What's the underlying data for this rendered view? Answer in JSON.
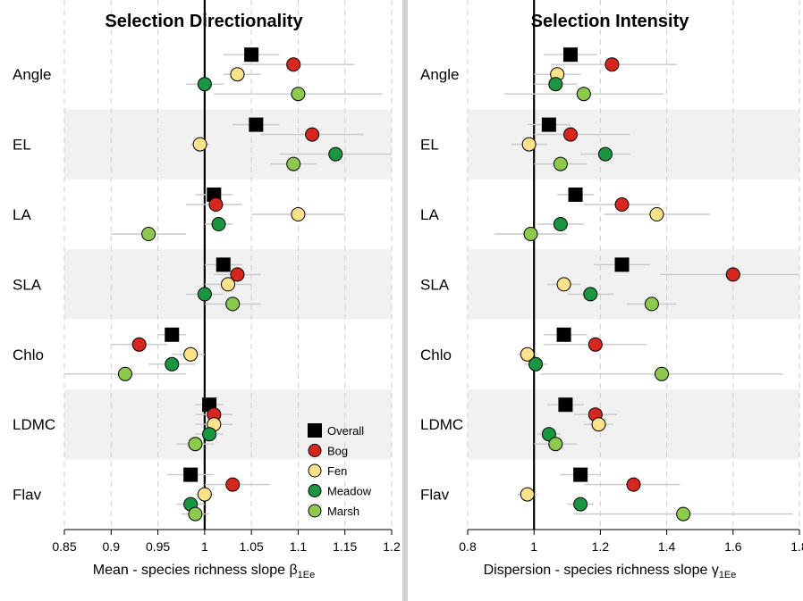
{
  "colors": {
    "Overall": "#000000",
    "Bog": "#d7261e",
    "Fen": "#fde28c",
    "Meadow": "#1a9641",
    "Marsh": "#8cc94c",
    "ci_line": "#c8c8c8",
    "band": "#f1f1f1",
    "grid": "#cfcfcf"
  },
  "chart_data": [
    {
      "type": "scatter",
      "title": "Selection Directionality",
      "xlabel": "Mean - species richness slope",
      "xlabel_symbol": "β",
      "xlabel_sub": "1Ee",
      "xlim": [
        0.85,
        1.2
      ],
      "xticks": [
        0.85,
        0.9,
        0.95,
        1,
        1.05,
        1.1,
        1.15,
        1.2
      ],
      "reference_line": 1,
      "grid": true,
      "legend": "bottom-right",
      "categories": [
        "Angle",
        "EL",
        "LA",
        "SLA",
        "Chlo",
        "LDMC",
        "Flav"
      ],
      "series": [
        {
          "name": "Overall",
          "marker": "square",
          "values": [
            1.05,
            1.055,
            1.01,
            1.02,
            0.965,
            1.005,
            0.985
          ],
          "ci": [
            [
              1.02,
              1.08
            ],
            [
              1.03,
              1.08
            ],
            [
              0.99,
              1.03
            ],
            [
              1.0,
              1.04
            ],
            [
              0.95,
              0.98
            ],
            [
              0.99,
              1.02
            ],
            [
              0.96,
              1.01
            ]
          ]
        },
        {
          "name": "Bog",
          "marker": "circle",
          "values": [
            1.095,
            1.115,
            1.012,
            1.035,
            0.93,
            1.01,
            1.03
          ],
          "ci": [
            [
              1.04,
              1.16
            ],
            [
              1.06,
              1.17
            ],
            [
              0.98,
              1.04
            ],
            [
              1.01,
              1.06
            ],
            [
              0.9,
              0.96
            ],
            [
              0.99,
              1.03
            ],
            [
              1.0,
              1.07
            ]
          ]
        },
        {
          "name": "Fen",
          "marker": "circle",
          "values": [
            1.035,
            0.995,
            1.1,
            1.025,
            0.985,
            1.01,
            1.0
          ],
          "ci": [
            [
              1.02,
              1.06
            ],
            [
              0.985,
              1.005
            ],
            [
              1.05,
              1.15
            ],
            [
              1.0,
              1.05
            ],
            [
              0.965,
              1.0
            ],
            [
              0.99,
              1.03
            ],
            [
              0.99,
              1.01
            ]
          ]
        },
        {
          "name": "Meadow",
          "marker": "circle",
          "values": [
            1.0,
            1.14,
            1.015,
            1.0,
            0.965,
            1.005,
            0.985
          ],
          "ci": [
            [
              0.98,
              1.02
            ],
            [
              1.08,
              1.2
            ],
            [
              1.0,
              1.03
            ],
            [
              0.98,
              1.02
            ],
            [
              0.94,
              0.99
            ],
            [
              0.99,
              1.02
            ],
            [
              0.97,
              1.0
            ]
          ]
        },
        {
          "name": "Marsh",
          "marker": "circle",
          "values": [
            1.1,
            1.095,
            0.94,
            1.03,
            0.915,
            0.99,
            0.99
          ],
          "ci": [
            [
              1.01,
              1.19
            ],
            [
              1.07,
              1.12
            ],
            [
              0.9,
              0.98
            ],
            [
              1.0,
              1.06
            ],
            [
              0.85,
              0.98
            ],
            [
              0.97,
              1.01
            ],
            [
              0.975,
              1.005
            ]
          ]
        }
      ]
    },
    {
      "type": "scatter",
      "title": "Selection Intensity",
      "xlabel": "Dispersion - species richness slope",
      "xlabel_symbol": "γ",
      "xlabel_sub": "1Ee",
      "xlim": [
        0.8,
        1.8
      ],
      "xticks": [
        0.8,
        1,
        1.2,
        1.4,
        1.6,
        1.8
      ],
      "reference_line": 1,
      "grid": true,
      "categories": [
        "Angle",
        "EL",
        "LA",
        "SLA",
        "Chlo",
        "LDMC",
        "Flav"
      ],
      "series": [
        {
          "name": "Overall",
          "marker": "square",
          "values": [
            1.11,
            1.045,
            1.125,
            1.265,
            1.09,
            1.095,
            1.14
          ],
          "ci": [
            [
              1.03,
              1.19
            ],
            [
              0.98,
              1.11
            ],
            [
              1.07,
              1.18
            ],
            [
              1.18,
              1.35
            ],
            [
              1.03,
              1.16
            ],
            [
              1.04,
              1.15
            ],
            [
              1.08,
              1.2
            ]
          ]
        },
        {
          "name": "Bog",
          "marker": "circle",
          "values": [
            1.235,
            1.11,
            1.265,
            1.6,
            1.185,
            1.185,
            1.3
          ],
          "ci": [
            [
              1.05,
              1.43
            ],
            [
              1.0,
              1.29
            ],
            [
              1.15,
              1.38
            ],
            [
              1.38,
              1.82
            ],
            [
              1.03,
              1.34
            ],
            [
              1.12,
              1.25
            ],
            [
              1.15,
              1.44
            ]
          ]
        },
        {
          "name": "Fen",
          "marker": "circle",
          "values": [
            1.07,
            0.985,
            1.37,
            1.09,
            0.98,
            1.195,
            0.98
          ],
          "ci": [
            [
              1.0,
              1.14
            ],
            [
              0.93,
              1.04
            ],
            [
              1.21,
              1.53
            ],
            [
              1.04,
              1.14
            ],
            [
              0.95,
              1.01
            ],
            [
              1.15,
              1.24
            ],
            [
              0.95,
              1.01
            ]
          ]
        },
        {
          "name": "Meadow",
          "marker": "circle",
          "values": [
            1.065,
            1.215,
            1.08,
            1.17,
            1.005,
            1.045,
            1.14
          ],
          "ci": [
            [
              1.0,
              1.13
            ],
            [
              1.14,
              1.29
            ],
            [
              1.01,
              1.15
            ],
            [
              1.1,
              1.24
            ],
            [
              0.97,
              1.04
            ],
            [
              1.01,
              1.08
            ],
            [
              1.1,
              1.18
            ]
          ]
        },
        {
          "name": "Marsh",
          "marker": "circle",
          "values": [
            1.15,
            1.08,
            0.99,
            1.355,
            1.385,
            1.065,
            1.45
          ],
          "ci": [
            [
              0.91,
              1.39
            ],
            [
              1.0,
              1.16
            ],
            [
              0.88,
              1.1
            ],
            [
              1.28,
              1.43
            ],
            [
              1.02,
              1.75
            ],
            [
              1.0,
              1.13
            ],
            [
              1.12,
              1.78
            ]
          ]
        }
      ]
    }
  ]
}
